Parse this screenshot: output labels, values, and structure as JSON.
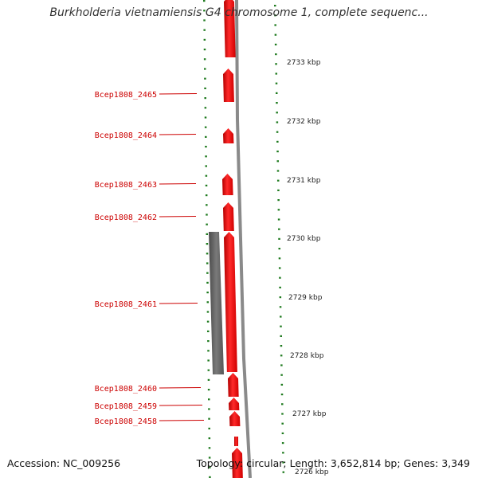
{
  "title": "Burkholderia vietnamiensis G4 chromosome 1, complete sequenc...",
  "accession": "Accession: NC_009256",
  "summary": "Topology: circular; Length: 3,652,814 bp; Genes: 3,349",
  "colors": {
    "gene": "#ff0000",
    "gene_label": "#cc0000",
    "ruler_tick": "#1e7a1e",
    "backbone": "#8a8a8a",
    "feature_gray": "#666666",
    "kbp_text": "#222222"
  },
  "kbp_labels": [
    "2733 kbp",
    "2732 kbp",
    "2731 kbp",
    "2730 kbp",
    "2729 kbp",
    "2728 kbp",
    "2727 kbp",
    "2726 kbp"
  ],
  "genes": [
    "Bcep1808_2465",
    "Bcep1808_2464",
    "Bcep1808_2463",
    "Bcep1808_2462",
    "Bcep1808_2461",
    "Bcep1808_2460",
    "Bcep1808_2459",
    "Bcep1808_2458"
  ]
}
